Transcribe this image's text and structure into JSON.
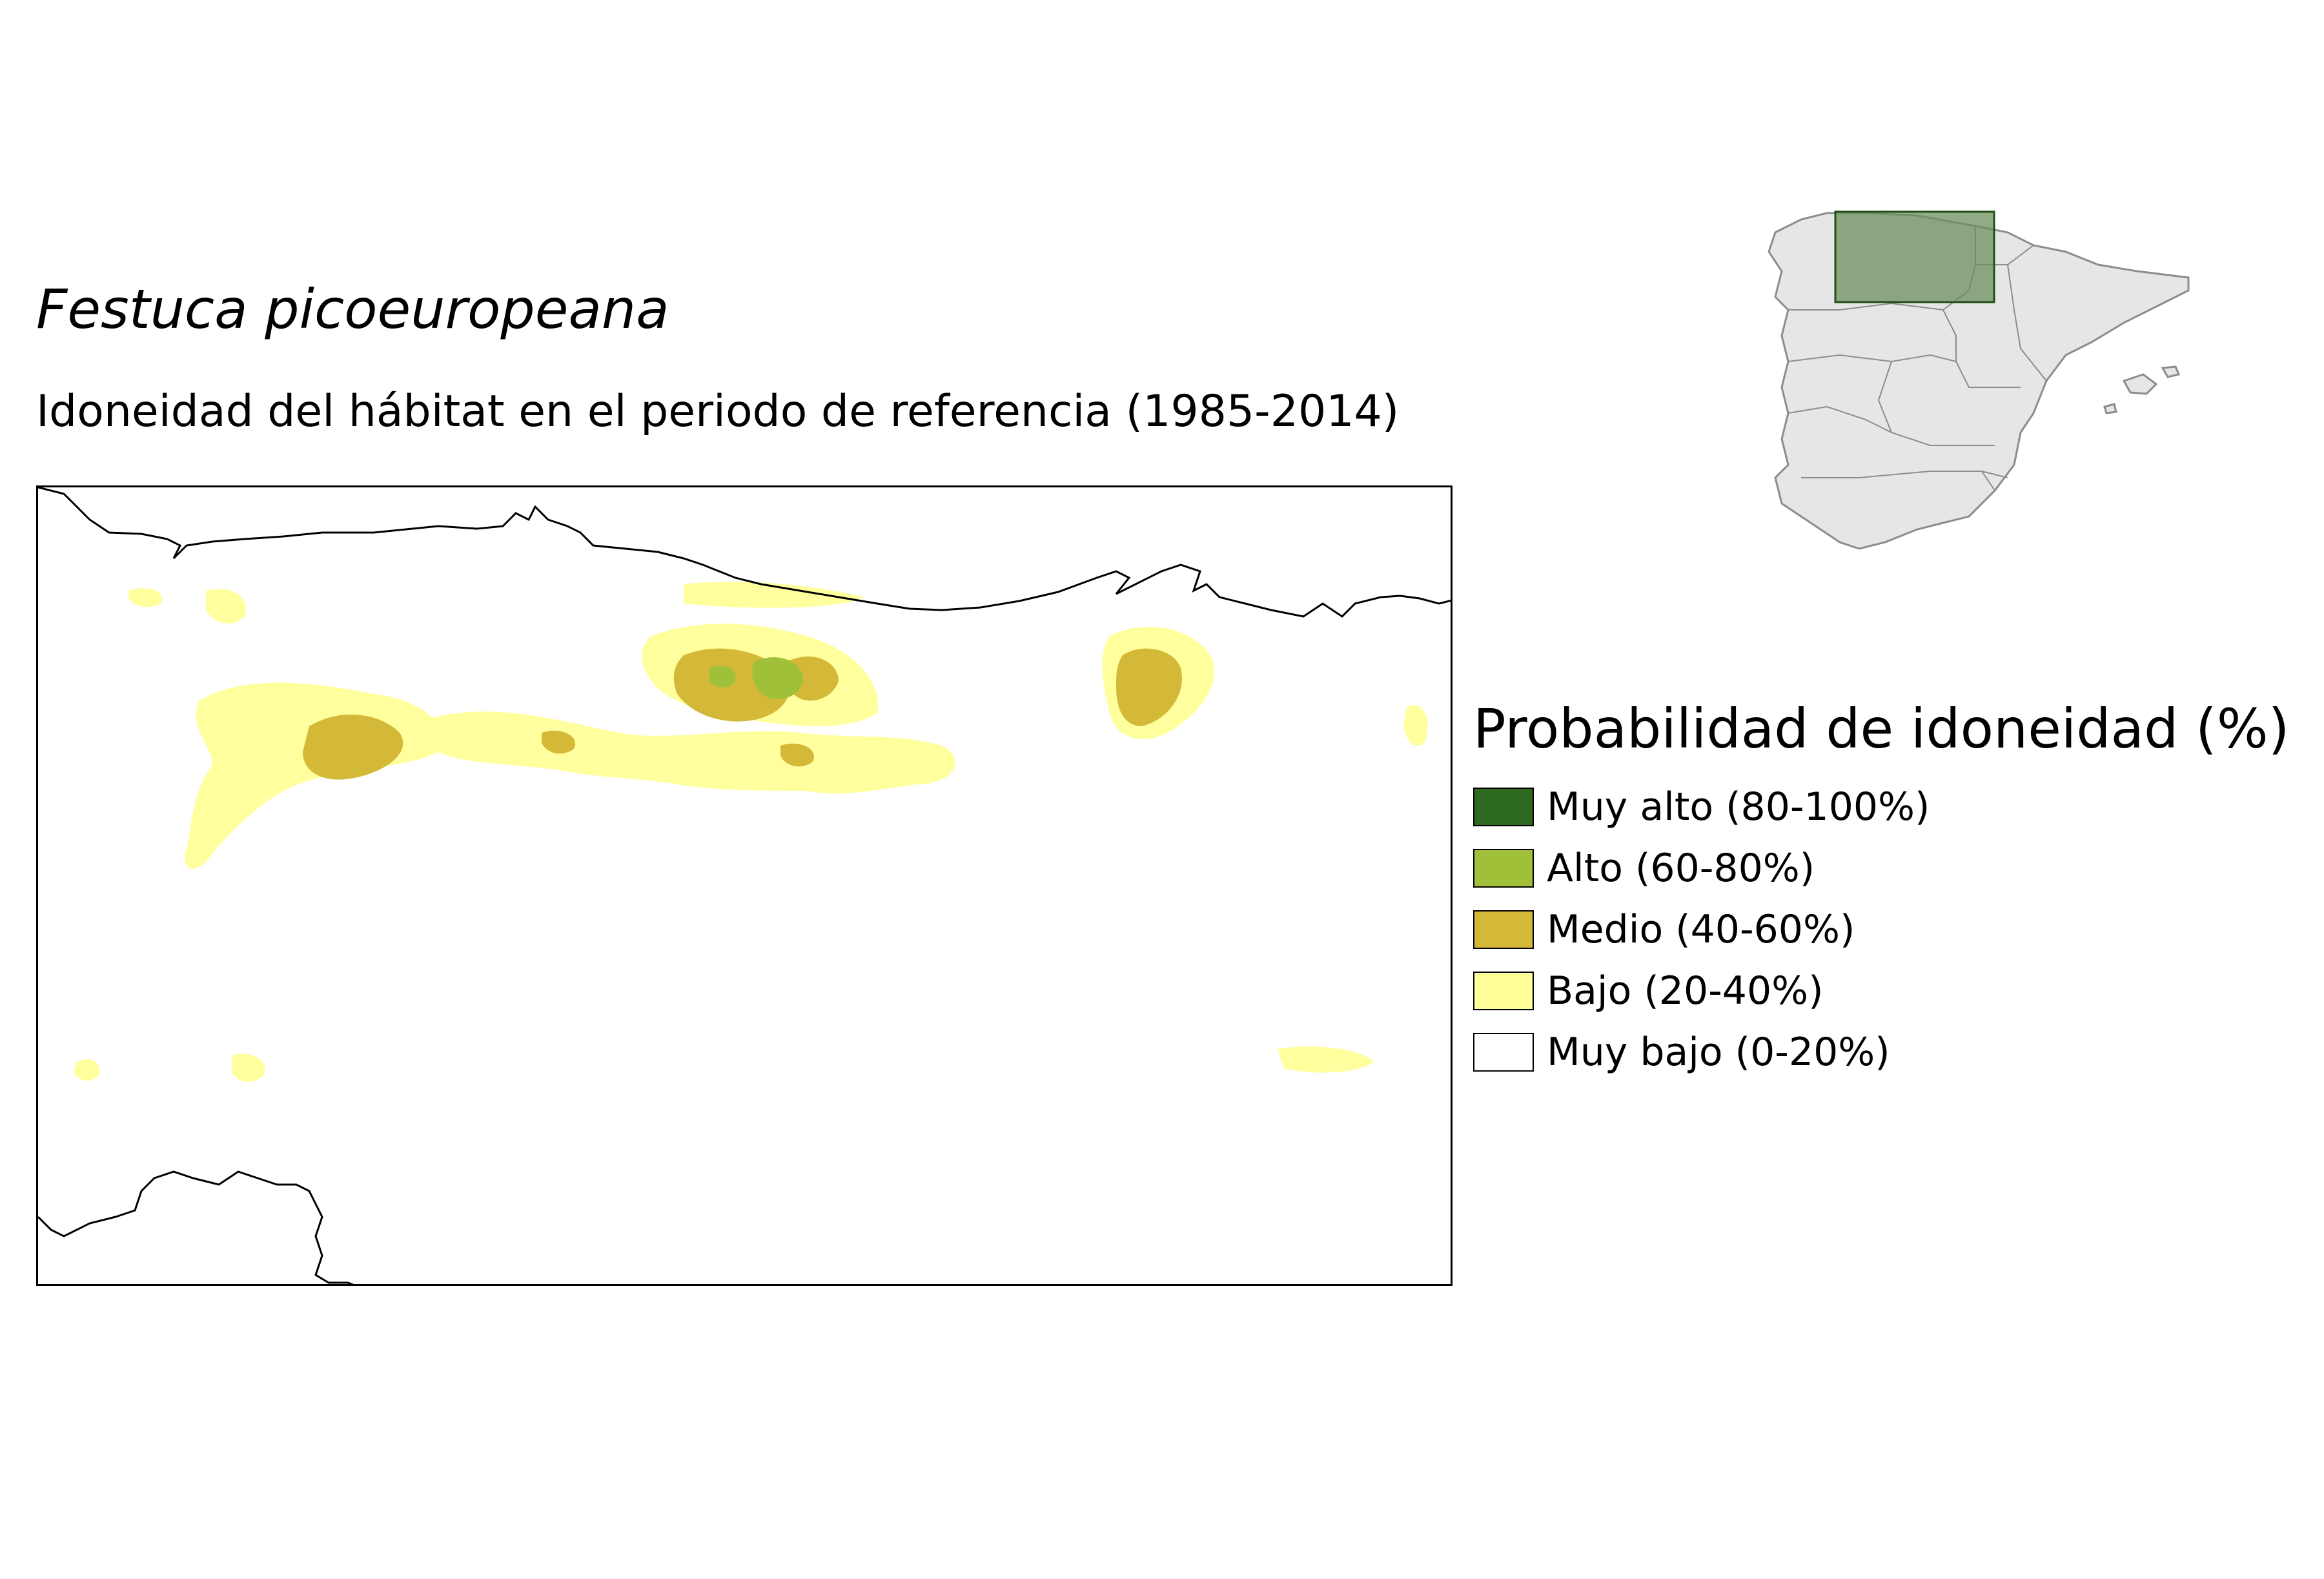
{
  "title": {
    "species": "Festuca picoeuropeana",
    "subtitle": "Idoneidad del hábitat en el periodo de referencia (1985-2014)"
  },
  "legend": {
    "title": "Probabilidad de idoneidad (%)",
    "items": [
      {
        "label": "Muy alto (80-100%)",
        "color": "#2d6a1f"
      },
      {
        "label": "Alto (60-80%)",
        "color": "#a0c03a"
      },
      {
        "label": "Medio (40-60%)",
        "color": "#d4b837"
      },
      {
        "label": "Bajo (20-40%)",
        "color": "#ffff99"
      },
      {
        "label": "Muy bajo (0-20%)",
        "color": "#ffffff"
      }
    ]
  },
  "colors": {
    "land_inset": "#e6e6e6",
    "inset_border": "#8c8c8c",
    "extent_fill": "#6b8f5e",
    "extent_stroke": "#1f4d14",
    "coastline": "#000000"
  }
}
